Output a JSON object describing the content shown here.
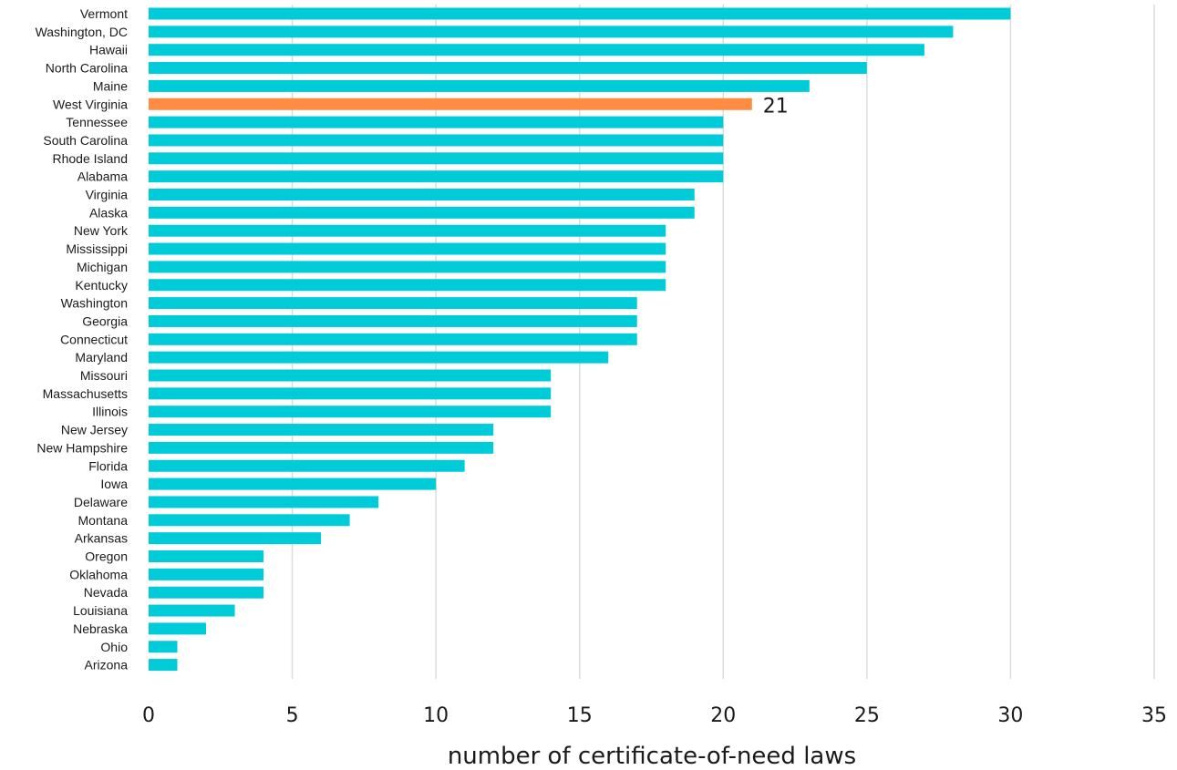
{
  "chart_data": {
    "type": "bar",
    "orientation": "horizontal",
    "title": "",
    "xlabel": "number of certificate-of-need laws",
    "ylabel": "",
    "xlim": [
      0,
      35
    ],
    "x_ticks": [
      0,
      5,
      10,
      15,
      20,
      25,
      30,
      35
    ],
    "grid": true,
    "categories": [
      "Vermont",
      "Washington, DC",
      "Hawaii",
      "North Carolina",
      "Maine",
      "West Virginia",
      "Tennessee",
      "South Carolina",
      "Rhode Island",
      "Alabama",
      "Virginia",
      "Alaska",
      "New York",
      "Mississippi",
      "Michigan",
      "Kentucky",
      "Washington",
      "Georgia",
      "Connecticut",
      "Maryland",
      "Missouri",
      "Massachusetts",
      "Illinois",
      "New Jersey",
      "New Hampshire",
      "Florida",
      "Iowa",
      "Delaware",
      "Montana",
      "Arkansas",
      "Oregon",
      "Oklahoma",
      "Nevada",
      "Louisiana",
      "Nebraska",
      "Ohio",
      "Arizona"
    ],
    "values": [
      30,
      28,
      27,
      25,
      23,
      21,
      20,
      20,
      20,
      20,
      19,
      19,
      18,
      18,
      18,
      18,
      17,
      17,
      17,
      16,
      14,
      14,
      14,
      12,
      12,
      11,
      10,
      8,
      7,
      6,
      4,
      4,
      4,
      3,
      2,
      1,
      1
    ],
    "highlight": {
      "category": "West Virginia",
      "label": "21"
    },
    "colors": {
      "bar": "#00CCD9",
      "highlight": "#FF8C42",
      "grid": "#dcdcdc"
    }
  }
}
